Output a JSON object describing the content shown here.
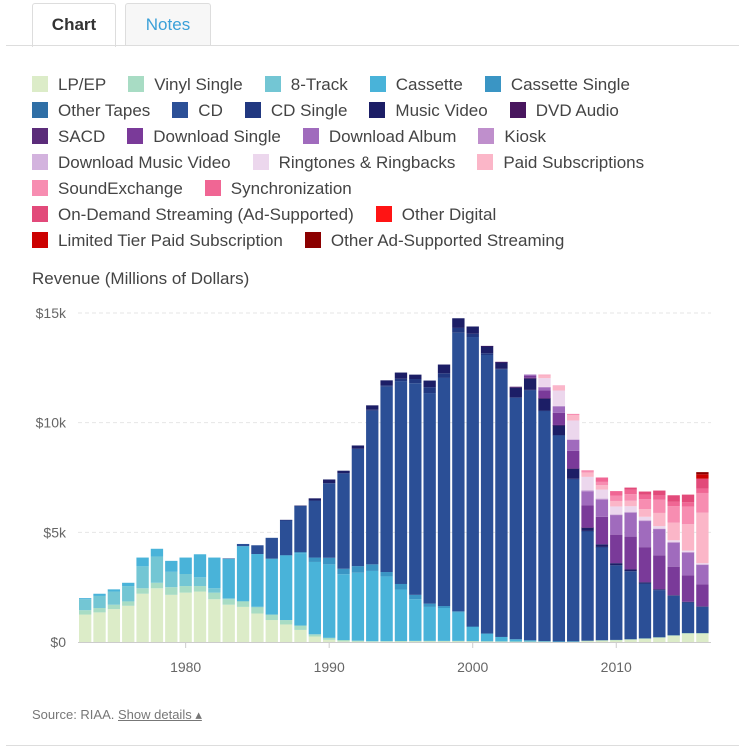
{
  "tabs": {
    "chart": "Chart",
    "notes": "Notes"
  },
  "legend_rows": [
    [
      "LP/EP",
      "Vinyl Single",
      "8-Track",
      "Cassette",
      "Cassette Single"
    ],
    [
      "Other Tapes",
      "CD",
      "CD Single",
      "Music Video",
      "DVD Audio"
    ],
    [
      "SACD",
      "Download Single",
      "Download Album",
      "Kiosk"
    ],
    [
      "Download Music Video",
      "Ringtones & Ringbacks",
      "Paid Subscriptions"
    ],
    [
      "SoundExchange",
      "Synchronization"
    ],
    [
      "On-Demand Streaming (Ad-Supported)",
      "Other Digital"
    ],
    [
      "Limited Tier Paid Subscription",
      "Other Ad-Supported Streaming"
    ]
  ],
  "source": {
    "label": "Source: RIAA.",
    "link": "Show details ▴"
  },
  "chart_data": {
    "type": "bar",
    "stacked": true,
    "ylabel": "Revenue (Millions of Dollars)",
    "yticks": [
      "$0",
      "$5k",
      "$10k",
      "$15k"
    ],
    "ylim": [
      0,
      15000
    ],
    "ytick_values": [
      0,
      5000,
      10000,
      15000
    ],
    "xticks": [
      "1980",
      "1990",
      "2000",
      "2010"
    ],
    "xtick_values": [
      1980,
      1990,
      2000,
      2010
    ],
    "xlim": [
      1972.5,
      2016.6
    ],
    "grid": true,
    "legend_position": "top",
    "categories": [
      "1973",
      "1974",
      "1975",
      "1976",
      "1977",
      "1978",
      "1979",
      "1980",
      "1981",
      "1982",
      "1983",
      "1984",
      "1985",
      "1986",
      "1987",
      "1988",
      "1989",
      "1990",
      "1991",
      "1992",
      "1993",
      "1994",
      "1995",
      "1996",
      "1997",
      "1998",
      "1999",
      "2000",
      "2001",
      "2002",
      "2003",
      "2004",
      "2005",
      "2006",
      "2007",
      "2008",
      "2009",
      "2010",
      "2011",
      "2012",
      "2013",
      "2014",
      "2015",
      "2016"
    ],
    "series": [
      {
        "name": "LP/EP",
        "color": "#dcecc8",
        "values": [
          1250,
          1350,
          1500,
          1650,
          2200,
          2450,
          2150,
          2250,
          2300,
          1950,
          1700,
          1600,
          1300,
          1000,
          800,
          550,
          250,
          100,
          30,
          20,
          10,
          15,
          25,
          30,
          35,
          35,
          35,
          30,
          25,
          20,
          20,
          20,
          15,
          15,
          20,
          55,
          75,
          90,
          120,
          160,
          210,
          300,
          400,
          400
        ]
      },
      {
        "name": "Vinyl Single",
        "color": "#a8dcc4",
        "values": [
          200,
          200,
          200,
          200,
          250,
          250,
          350,
          300,
          250,
          300,
          250,
          250,
          300,
          250,
          200,
          200,
          100,
          90,
          60,
          40,
          30,
          25,
          20,
          20,
          15,
          15,
          15,
          15,
          10,
          10,
          5,
          5,
          5,
          5,
          5,
          5,
          5,
          5,
          5,
          5,
          5,
          5,
          5,
          5
        ]
      },
      {
        "name": "8-Track",
        "color": "#73c6d4",
        "values": [
          500,
          550,
          600,
          700,
          1000,
          1200,
          700,
          550,
          400,
          200,
          50,
          20,
          10,
          0,
          0,
          0,
          0,
          0,
          0,
          0,
          0,
          0,
          0,
          0,
          0,
          0,
          0,
          0,
          0,
          0,
          0,
          0,
          0,
          0,
          0,
          0,
          0,
          0,
          0,
          0,
          0,
          0,
          0,
          0
        ]
      },
      {
        "name": "Cassette",
        "color": "#49b3d9",
        "values": [
          50,
          100,
          100,
          150,
          400,
          350,
          500,
          750,
          1050,
          1400,
          1800,
          2500,
          2400,
          2550,
          2950,
          3300,
          3300,
          3350,
          3000,
          3100,
          3200,
          2950,
          2350,
          1900,
          1550,
          1500,
          1300,
          650,
          350,
          200,
          100,
          50,
          20,
          5,
          5,
          0,
          0,
          0,
          0,
          0,
          0,
          0,
          0,
          0
        ]
      },
      {
        "name": "Cassette Single",
        "color": "#3a95c4",
        "values": [
          0,
          0,
          0,
          0,
          0,
          0,
          0,
          0,
          0,
          0,
          0,
          0,
          0,
          0,
          10,
          50,
          200,
          300,
          250,
          300,
          300,
          200,
          250,
          200,
          150,
          90,
          50,
          10,
          0,
          0,
          0,
          0,
          0,
          0,
          0,
          0,
          0,
          0,
          0,
          0,
          0,
          0,
          0,
          0
        ]
      },
      {
        "name": "Other Tapes",
        "color": "#2f6fa6",
        "values": [
          0,
          0,
          0,
          0,
          0,
          0,
          0,
          0,
          0,
          0,
          0,
          0,
          0,
          0,
          0,
          0,
          0,
          0,
          0,
          0,
          0,
          0,
          0,
          0,
          0,
          0,
          0,
          0,
          0,
          0,
          0,
          0,
          0,
          0,
          0,
          0,
          0,
          0,
          0,
          0,
          0,
          0,
          0,
          0
        ]
      },
      {
        "name": "CD",
        "color": "#2b4f96",
        "values": [
          0,
          0,
          0,
          0,
          0,
          0,
          0,
          0,
          0,
          0,
          10,
          100,
          400,
          950,
          1600,
          2100,
          2600,
          3400,
          4350,
          5350,
          7000,
          8450,
          9250,
          9650,
          9600,
          10400,
          12700,
          13200,
          12700,
          12200,
          11000,
          11400,
          10500,
          9400,
          7400,
          5000,
          4250,
          3400,
          3100,
          2500,
          2150,
          1800,
          1400,
          1200
        ]
      },
      {
        "name": "CD Single",
        "color": "#213880",
        "values": [
          0,
          0,
          0,
          0,
          0,
          0,
          0,
          0,
          0,
          0,
          0,
          0,
          0,
          0,
          0,
          0,
          0,
          0,
          0,
          0,
          50,
          60,
          110,
          190,
          270,
          210,
          220,
          150,
          80,
          25,
          30,
          20,
          10,
          10,
          10,
          5,
          5,
          0,
          0,
          0,
          0,
          0,
          0,
          0
        ]
      },
      {
        "name": "Music Video",
        "color": "#1c1e66",
        "values": [
          0,
          0,
          0,
          0,
          0,
          0,
          0,
          0,
          0,
          0,
          0,
          0,
          0,
          0,
          10,
          20,
          100,
          170,
          120,
          150,
          200,
          230,
          280,
          200,
          300,
          400,
          440,
          330,
          330,
          300,
          450,
          520,
          550,
          450,
          470,
          150,
          120,
          100,
          80,
          60,
          40,
          30,
          30,
          20
        ]
      },
      {
        "name": "DVD Audio",
        "color": "#48165e",
        "values": [
          0,
          0,
          0,
          0,
          0,
          0,
          0,
          0,
          0,
          0,
          0,
          0,
          0,
          0,
          0,
          0,
          0,
          0,
          0,
          0,
          0,
          0,
          0,
          0,
          0,
          0,
          0,
          0,
          5,
          10,
          10,
          10,
          10,
          5,
          5,
          5,
          0,
          0,
          0,
          0,
          0,
          0,
          0,
          0
        ]
      },
      {
        "name": "SACD",
        "color": "#5b2c7a",
        "values": [
          0,
          0,
          0,
          0,
          0,
          0,
          0,
          0,
          0,
          0,
          0,
          0,
          0,
          0,
          0,
          0,
          0,
          0,
          0,
          0,
          0,
          0,
          0,
          0,
          0,
          0,
          0,
          0,
          0,
          10,
          25,
          20,
          10,
          5,
          5,
          5,
          0,
          0,
          0,
          0,
          0,
          0,
          0,
          0
        ]
      },
      {
        "name": "Download Single",
        "color": "#7a3a99",
        "values": [
          0,
          0,
          0,
          0,
          0,
          0,
          0,
          0,
          0,
          0,
          0,
          0,
          0,
          0,
          0,
          0,
          0,
          0,
          0,
          0,
          0,
          0,
          0,
          0,
          0,
          0,
          0,
          0,
          0,
          0,
          0,
          100,
          350,
          550,
          800,
          1000,
          1250,
          1300,
          1500,
          1600,
          1550,
          1300,
          1200,
          1000
        ]
      },
      {
        "name": "Download Album",
        "color": "#a06bbd",
        "values": [
          0,
          0,
          0,
          0,
          0,
          0,
          0,
          0,
          0,
          0,
          0,
          0,
          0,
          0,
          0,
          0,
          0,
          0,
          0,
          0,
          0,
          0,
          0,
          0,
          0,
          0,
          0,
          0,
          0,
          0,
          0,
          50,
          150,
          300,
          500,
          650,
          800,
          900,
          1100,
          1200,
          1200,
          1100,
          1050,
          900
        ]
      },
      {
        "name": "Kiosk",
        "color": "#bf8fcc",
        "values": [
          0,
          0,
          0,
          0,
          0,
          0,
          0,
          0,
          0,
          0,
          0,
          0,
          0,
          0,
          0,
          0,
          0,
          0,
          0,
          0,
          0,
          0,
          0,
          0,
          0,
          0,
          0,
          0,
          0,
          0,
          0,
          0,
          0,
          0,
          0,
          5,
          5,
          5,
          5,
          5,
          5,
          5,
          5,
          5
        ]
      },
      {
        "name": "Download Music Video",
        "color": "#d3b3de",
        "values": [
          0,
          0,
          0,
          0,
          0,
          0,
          0,
          0,
          0,
          0,
          0,
          0,
          0,
          0,
          0,
          0,
          0,
          0,
          0,
          0,
          0,
          0,
          0,
          0,
          0,
          0,
          0,
          0,
          0,
          0,
          0,
          0,
          10,
          20,
          30,
          50,
          40,
          30,
          30,
          30,
          25,
          20,
          20,
          15
        ]
      },
      {
        "name": "Ringtones & Ringbacks",
        "color": "#ecd7ed",
        "values": [
          0,
          0,
          0,
          0,
          0,
          0,
          0,
          0,
          0,
          0,
          0,
          0,
          0,
          0,
          0,
          0,
          0,
          0,
          0,
          0,
          0,
          0,
          0,
          0,
          0,
          0,
          0,
          0,
          0,
          0,
          0,
          0,
          400,
          700,
          850,
          600,
          400,
          350,
          250,
          150,
          100,
          80,
          60,
          50
        ]
      },
      {
        "name": "Paid Subscriptions",
        "color": "#fbb6c8",
        "values": [
          0,
          0,
          0,
          0,
          0,
          0,
          0,
          0,
          0,
          0,
          0,
          0,
          0,
          0,
          0,
          0,
          0,
          0,
          0,
          0,
          0,
          0,
          0,
          0,
          0,
          0,
          0,
          0,
          0,
          0,
          0,
          0,
          150,
          200,
          250,
          200,
          200,
          250,
          250,
          350,
          600,
          800,
          1200,
          2300
        ]
      },
      {
        "name": "SoundExchange",
        "color": "#f78db1",
        "values": [
          0,
          0,
          0,
          0,
          0,
          0,
          0,
          0,
          0,
          0,
          0,
          0,
          0,
          0,
          0,
          0,
          0,
          0,
          0,
          0,
          0,
          0,
          0,
          0,
          0,
          0,
          0,
          0,
          0,
          0,
          0,
          0,
          10,
          30,
          50,
          100,
          150,
          250,
          300,
          450,
          600,
          750,
          800,
          900
        ]
      },
      {
        "name": "Synchronization",
        "color": "#f06694",
        "values": [
          0,
          0,
          0,
          0,
          0,
          0,
          0,
          0,
          0,
          0,
          0,
          0,
          0,
          0,
          0,
          0,
          0,
          0,
          0,
          0,
          0,
          0,
          0,
          0,
          0,
          0,
          0,
          0,
          0,
          0,
          0,
          0,
          0,
          0,
          0,
          0,
          200,
          200,
          200,
          200,
          200,
          200,
          200,
          200
        ]
      },
      {
        "name": "On-Demand Streaming (Ad-Supported)",
        "color": "#e24a7a",
        "values": [
          0,
          0,
          0,
          0,
          0,
          0,
          0,
          0,
          0,
          0,
          0,
          0,
          0,
          0,
          0,
          0,
          0,
          0,
          0,
          0,
          0,
          0,
          0,
          0,
          0,
          0,
          0,
          0,
          0,
          0,
          0,
          0,
          0,
          0,
          0,
          0,
          0,
          0,
          100,
          150,
          220,
          300,
          350,
          450
        ]
      },
      {
        "name": "Other Digital",
        "color": "#ff1414",
        "values": [
          0,
          0,
          0,
          0,
          0,
          0,
          0,
          0,
          0,
          0,
          0,
          0,
          0,
          0,
          0,
          0,
          0,
          0,
          0,
          0,
          0,
          0,
          0,
          0,
          0,
          0,
          0,
          0,
          0,
          0,
          0,
          0,
          0,
          0,
          0,
          0,
          0,
          0,
          0,
          0,
          0,
          0,
          0,
          0
        ]
      },
      {
        "name": "Limited Tier Paid Subscription",
        "color": "#cc0000",
        "values": [
          0,
          0,
          0,
          0,
          0,
          0,
          0,
          0,
          0,
          0,
          0,
          0,
          0,
          0,
          0,
          0,
          0,
          0,
          0,
          0,
          0,
          0,
          0,
          0,
          0,
          0,
          0,
          0,
          0,
          0,
          0,
          0,
          0,
          0,
          0,
          0,
          0,
          0,
          0,
          0,
          0,
          0,
          0,
          200
        ]
      },
      {
        "name": "Other Ad-Supported Streaming",
        "color": "#8b0000",
        "values": [
          0,
          0,
          0,
          0,
          0,
          0,
          0,
          0,
          0,
          0,
          0,
          0,
          0,
          0,
          0,
          0,
          0,
          0,
          0,
          0,
          0,
          0,
          0,
          0,
          0,
          0,
          0,
          0,
          0,
          0,
          0,
          0,
          0,
          0,
          0,
          0,
          0,
          0,
          0,
          0,
          0,
          0,
          0,
          100
        ]
      }
    ]
  }
}
